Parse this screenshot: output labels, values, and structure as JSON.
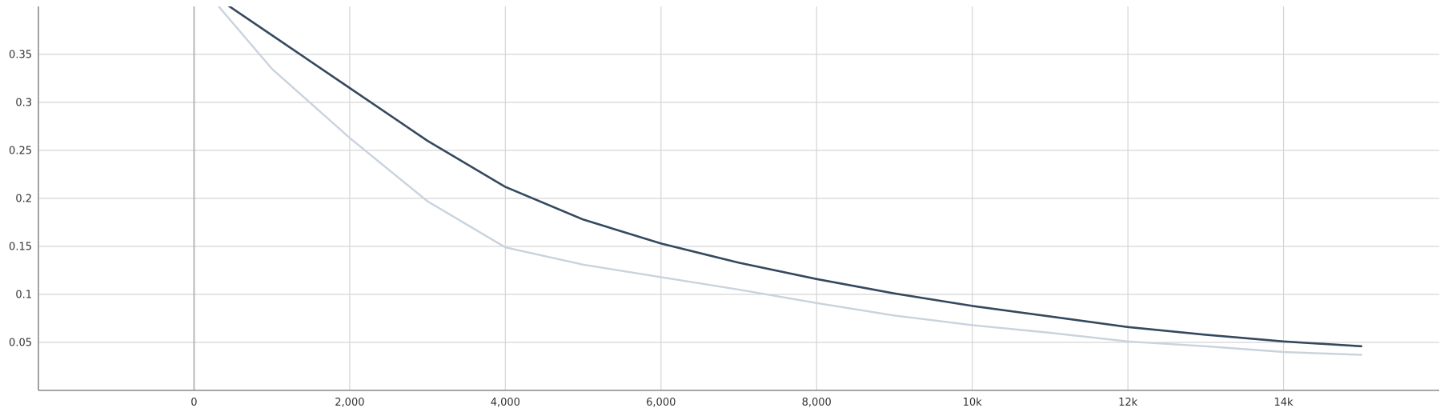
{
  "chart_data": {
    "type": "line",
    "title": "",
    "xlabel": "",
    "ylabel": "",
    "xlim": [
      -2000,
      16000
    ],
    "ylim": [
      0,
      0.4
    ],
    "grid": true,
    "x_ticks": [
      {
        "value": 0,
        "label": "0"
      },
      {
        "value": 2000,
        "label": "2,000"
      },
      {
        "value": 4000,
        "label": "4,000"
      },
      {
        "value": 6000,
        "label": "6,000"
      },
      {
        "value": 8000,
        "label": "8,000"
      },
      {
        "value": 10000,
        "label": "10k"
      },
      {
        "value": 12000,
        "label": "12k"
      },
      {
        "value": 14000,
        "label": "14k"
      }
    ],
    "y_ticks": [
      {
        "value": 0.05,
        "label": "0.05"
      },
      {
        "value": 0.1,
        "label": "0.1"
      },
      {
        "value": 0.15,
        "label": "0.15"
      },
      {
        "value": 0.2,
        "label": "0.2"
      },
      {
        "value": 0.25,
        "label": "0.25"
      },
      {
        "value": 0.3,
        "label": "0.3"
      },
      {
        "value": 0.35,
        "label": "0.35"
      }
    ],
    "series": [
      {
        "color": "#34495e",
        "x": [
          0,
          1000,
          2000,
          3000,
          4000,
          5000,
          6000,
          7000,
          8000,
          9000,
          10000,
          11000,
          12000,
          13000,
          14000,
          15000
        ],
        "y": [
          0.425,
          0.37,
          0.315,
          0.26,
          0.212,
          0.178,
          0.153,
          0.133,
          0.116,
          0.101,
          0.088,
          0.077,
          0.066,
          0.058,
          0.051,
          0.046
        ]
      },
      {
        "color": "#c8d3de",
        "x": [
          0,
          1000,
          2000,
          3000,
          4000,
          5000,
          6000,
          7000,
          8000,
          9000,
          10000,
          11000,
          12000,
          13000,
          14000,
          15000
        ],
        "y": [
          0.43,
          0.335,
          0.263,
          0.197,
          0.149,
          0.131,
          0.118,
          0.105,
          0.091,
          0.078,
          0.068,
          0.06,
          0.051,
          0.046,
          0.04,
          0.037
        ]
      }
    ]
  }
}
